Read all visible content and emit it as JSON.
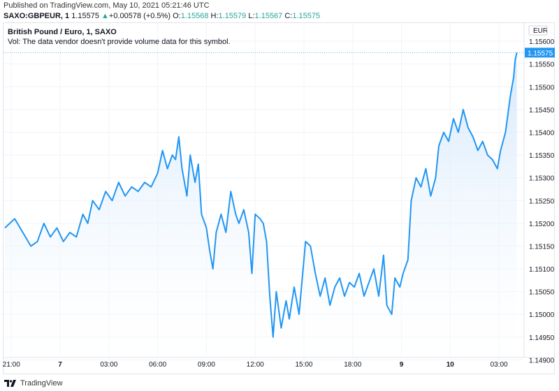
{
  "header": {
    "published": "Published on TradingView.com, May 10, 2021 05:21:46 UTC",
    "symbol": "SAXO:GBPEUR, 1",
    "last": "1.15575",
    "arrow": "▲",
    "change": "+0.00578 (+0.5%)",
    "o_label": "O:",
    "o_value": "1.15568",
    "h_label": "H:",
    "h_value": "1.15579",
    "l_label": "L:",
    "l_value": "1.15567",
    "c_label": "C:",
    "c_value": "1.15575"
  },
  "legend": {
    "title": "British Pound / Euro, 1, SAXO",
    "volume_note": "Vol: The data vendor doesn't provide volume data for this symbol."
  },
  "footer": {
    "brand": "TradingView",
    "icon": "tradingview-logo-icon"
  },
  "colors": {
    "line": "#2196f3",
    "fill_top": "#cfe5fb",
    "fill_bottom": "#ffffff",
    "grid": "#f0f3fa",
    "price_label_bg": "#2196f3",
    "up": "#26a69a"
  },
  "chart_data": {
    "type": "area",
    "currency": "EUR",
    "last_price_label": "1.15575",
    "ylim": [
      1.1487,
      1.1564
    ],
    "y_ticks": [
      "1.15600",
      "1.15550",
      "1.15500",
      "1.15450",
      "1.15400",
      "1.15350",
      "1.15300",
      "1.15250",
      "1.15200",
      "1.15150",
      "1.15100",
      "1.15050",
      "1.15000",
      "1.14950",
      "1.14900"
    ],
    "x_ticks": [
      {
        "label": "21:00",
        "x": 0
      },
      {
        "label": "7",
        "x": 3
      },
      {
        "label": "03:00",
        "x": 6
      },
      {
        "label": "06:00",
        "x": 9
      },
      {
        "label": "09:00",
        "x": 12
      },
      {
        "label": "12:00",
        "x": 15
      },
      {
        "label": "15:00",
        "x": 18
      },
      {
        "label": "18:00",
        "x": 21
      },
      {
        "label": "9",
        "x": 24
      },
      {
        "label": "10",
        "x": 27
      },
      {
        "label": "03:00",
        "x": 30
      }
    ],
    "x_unit_note": "hours since first tick",
    "xlim": [
      -0.4,
      31.2
    ],
    "series": [
      {
        "values": [
          [
            -0.4,
            1.1519
          ],
          [
            0.2,
            1.1521
          ],
          [
            0.7,
            1.1518
          ],
          [
            1.2,
            1.1515
          ],
          [
            1.6,
            1.1516
          ],
          [
            2.0,
            1.152
          ],
          [
            2.4,
            1.1517
          ],
          [
            2.8,
            1.1519
          ],
          [
            3.2,
            1.1516
          ],
          [
            3.6,
            1.1518
          ],
          [
            4.0,
            1.1517
          ],
          [
            4.4,
            1.1522
          ],
          [
            4.7,
            1.152
          ],
          [
            5.0,
            1.1525
          ],
          [
            5.4,
            1.1523
          ],
          [
            5.8,
            1.1527
          ],
          [
            6.2,
            1.1525
          ],
          [
            6.6,
            1.1529
          ],
          [
            7.0,
            1.1526
          ],
          [
            7.4,
            1.1528
          ],
          [
            7.8,
            1.1527
          ],
          [
            8.2,
            1.1529
          ],
          [
            8.6,
            1.1528
          ],
          [
            9.0,
            1.1531
          ],
          [
            9.3,
            1.1536
          ],
          [
            9.6,
            1.1532
          ],
          [
            9.9,
            1.1535
          ],
          [
            10.1,
            1.1534
          ],
          [
            10.3,
            1.1539
          ],
          [
            10.5,
            1.1532
          ],
          [
            10.8,
            1.1526
          ],
          [
            11.0,
            1.1535
          ],
          [
            11.3,
            1.1529
          ],
          [
            11.5,
            1.1533
          ],
          [
            11.7,
            1.1522
          ],
          [
            12.0,
            1.1519
          ],
          [
            12.2,
            1.1514
          ],
          [
            12.4,
            1.151
          ],
          [
            12.6,
            1.1518
          ],
          [
            12.9,
            1.1522
          ],
          [
            13.2,
            1.1518
          ],
          [
            13.5,
            1.1527
          ],
          [
            13.8,
            1.1522
          ],
          [
            14.0,
            1.152
          ],
          [
            14.3,
            1.1523
          ],
          [
            14.6,
            1.1518
          ],
          [
            14.8,
            1.1509
          ],
          [
            15.0,
            1.1522
          ],
          [
            15.3,
            1.1521
          ],
          [
            15.5,
            1.152
          ],
          [
            15.7,
            1.1516
          ],
          [
            15.9,
            1.1504
          ],
          [
            16.1,
            1.1495
          ],
          [
            16.3,
            1.1505
          ],
          [
            16.6,
            1.1497
          ],
          [
            16.9,
            1.1503
          ],
          [
            17.1,
            1.1499
          ],
          [
            17.4,
            1.1506
          ],
          [
            17.7,
            1.15
          ],
          [
            17.9,
            1.1508
          ],
          [
            18.1,
            1.1516
          ],
          [
            18.4,
            1.1515
          ],
          [
            18.7,
            1.1509
          ],
          [
            19.0,
            1.1504
          ],
          [
            19.3,
            1.1508
          ],
          [
            19.6,
            1.1502
          ],
          [
            19.9,
            1.1506
          ],
          [
            20.2,
            1.1508
          ],
          [
            20.5,
            1.1504
          ],
          [
            20.8,
            1.1507
          ],
          [
            21.1,
            1.1506
          ],
          [
            21.4,
            1.1509
          ],
          [
            21.7,
            1.1504
          ],
          [
            22.0,
            1.1507
          ],
          [
            22.3,
            1.151
          ],
          [
            22.6,
            1.1504
          ],
          [
            22.9,
            1.1513
          ],
          [
            23.1,
            1.1502
          ],
          [
            23.4,
            1.15
          ],
          [
            23.6,
            1.1508
          ],
          [
            23.9,
            1.1506
          ],
          [
            24.1,
            1.1509
          ],
          [
            24.4,
            1.1512
          ],
          [
            24.6,
            1.1525
          ],
          [
            24.9,
            1.153
          ],
          [
            25.2,
            1.1528
          ],
          [
            25.5,
            1.1532
          ],
          [
            25.8,
            1.1526
          ],
          [
            26.1,
            1.153
          ],
          [
            26.3,
            1.1537
          ],
          [
            26.6,
            1.154
          ],
          [
            26.9,
            1.1538
          ],
          [
            27.2,
            1.1543
          ],
          [
            27.5,
            1.154
          ],
          [
            27.8,
            1.1545
          ],
          [
            28.1,
            1.1541
          ],
          [
            28.4,
            1.1539
          ],
          [
            28.7,
            1.1536
          ],
          [
            29.0,
            1.1538
          ],
          [
            29.3,
            1.1535
          ],
          [
            29.6,
            1.1534
          ],
          [
            29.9,
            1.1532
          ],
          [
            30.1,
            1.1536
          ],
          [
            30.4,
            1.154
          ],
          [
            30.7,
            1.1548
          ],
          [
            30.9,
            1.1552
          ],
          [
            31.0,
            1.1556
          ],
          [
            31.1,
            1.15575
          ]
        ]
      }
    ],
    "grid": true,
    "legend": "top-left"
  }
}
